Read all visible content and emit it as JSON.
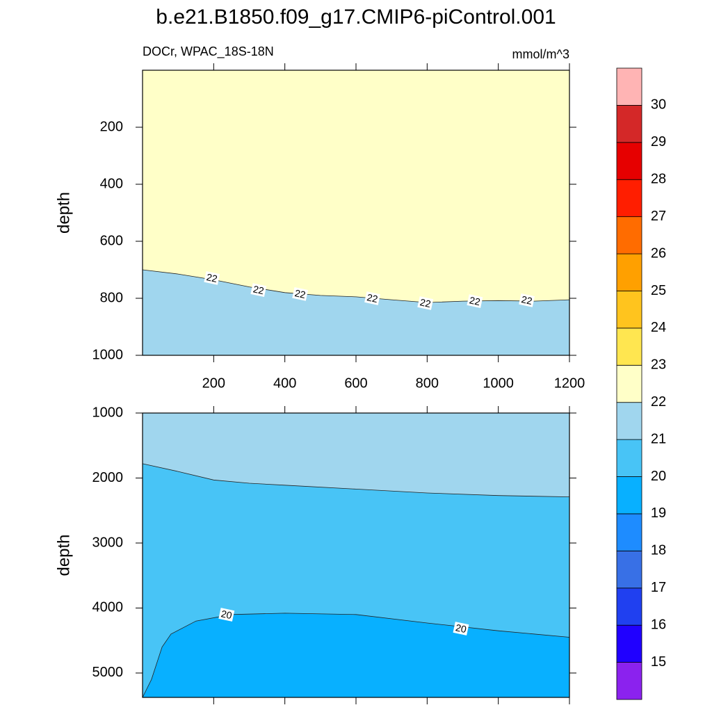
{
  "title": "b.e21.B1850.f09_g17.CMIP6-piControl.001",
  "colorbar": {
    "levels": [
      15,
      16,
      17,
      18,
      19,
      20,
      21,
      22,
      23,
      24,
      25,
      26,
      27,
      28,
      29,
      30
    ],
    "colors": [
      "#8b22ee",
      "#2000ff",
      "#2040f0",
      "#3870e6",
      "#1e8cff",
      "#08b0ff",
      "#48c4f6",
      "#a0d6ee",
      "#ffffc8",
      "#ffe650",
      "#ffc41e",
      "#ffa000",
      "#ff6c00",
      "#ff1e00",
      "#e60000",
      "#d42828",
      "#ffb4b4"
    ]
  },
  "chart_data": [
    {
      "type": "contour",
      "subtitle_left": "DOCr, WPAC_18S-18N",
      "subtitle_right": "mmol/m^3",
      "ylabel": "depth",
      "xlim": [
        0,
        1200
      ],
      "ylim": [
        0,
        1000
      ],
      "y_reversed": true,
      "xtick_labels": true,
      "xticks": [
        200,
        400,
        600,
        800,
        1000,
        1200
      ],
      "yticks": [
        200,
        400,
        600,
        800,
        1000
      ],
      "contours": [
        {
          "level": 22,
          "x": [
            0,
            100,
            200,
            300,
            400,
            500,
            600,
            700,
            800,
            900,
            1000,
            1100,
            1200
          ],
          "y": [
            700,
            715,
            735,
            760,
            780,
            790,
            795,
            805,
            815,
            810,
            808,
            810,
            805
          ]
        }
      ],
      "contour_labels": [
        {
          "x": 195,
          "y": 729,
          "value": 22
        },
        {
          "x": 326,
          "y": 771,
          "value": 22
        },
        {
          "x": 443,
          "y": 785,
          "value": 22
        },
        {
          "x": 646,
          "y": 800,
          "value": 22
        },
        {
          "x": 795,
          "y": 817,
          "value": 22
        },
        {
          "x": 934,
          "y": 810,
          "value": 22
        },
        {
          "x": 1080,
          "y": 807,
          "value": 22
        }
      ]
    },
    {
      "type": "contour",
      "ylabel": "depth",
      "xlim": [
        0,
        1200
      ],
      "ylim": [
        1000,
        5375
      ],
      "y_reversed": true,
      "xtick_labels": false,
      "xticks": [
        200,
        400,
        600,
        800,
        1000,
        1200
      ],
      "yticks": [
        1000,
        2000,
        3000,
        4000,
        5000
      ],
      "contours": [
        {
          "level": 21,
          "x": [
            0,
            100,
            200,
            300,
            400,
            600,
            800,
            1000,
            1200
          ],
          "y": [
            1780,
            1900,
            2030,
            2080,
            2110,
            2170,
            2230,
            2270,
            2290
          ]
        },
        {
          "level": 20,
          "x": [
            0,
            25,
            55,
            80,
            150,
            250,
            400,
            600,
            800,
            1000,
            1200
          ],
          "y": [
            5375,
            5100,
            4600,
            4400,
            4200,
            4100,
            4080,
            4100,
            4230,
            4350,
            4450
          ]
        }
      ],
      "contour_labels": [
        {
          "x": 236,
          "y": 4102,
          "value": 20
        },
        {
          "x": 895,
          "y": 4316,
          "value": 20
        }
      ]
    }
  ]
}
